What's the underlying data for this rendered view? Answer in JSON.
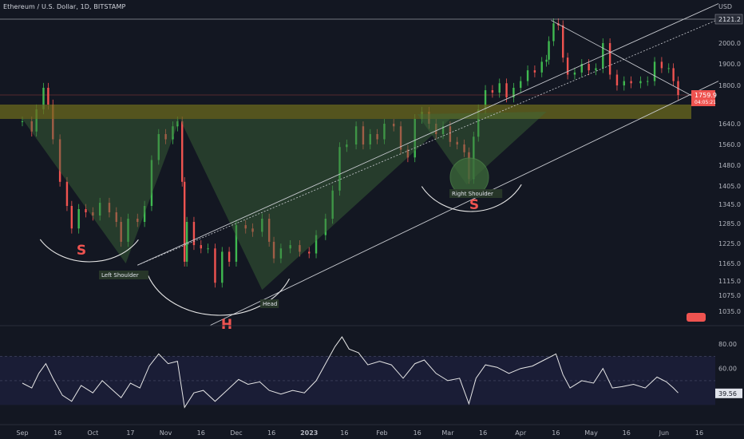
{
  "header": {
    "symbol_title": "Ethereum / U.S. Dollar, 1D, BITSTAMP",
    "currency": "USD"
  },
  "colors": {
    "background": "#131722",
    "up": "#26a69a",
    "up_candle": "#3fb950",
    "down": "#ef5350",
    "grid": "#1e222d",
    "axis_text": "#b2b5be",
    "resistance_zone": "#6b6a1e",
    "pattern_fill": "#3d6b3a",
    "channel_line": "#c9cbd1",
    "rsi_line": "#e6e6e6",
    "rsi_band": "#1c1f3a"
  },
  "chart_data": {
    "type": "candlestick",
    "title": "Ethereum / U.S. Dollar, 1D, BITSTAMP",
    "price_axis": {
      "ticks": [
        2121.2,
        2000.0,
        1900.0,
        1800.0,
        1640.0,
        1560.0,
        1480.0,
        1405.0,
        1345.0,
        1285.0,
        1225.0,
        1165.0,
        1115.0,
        1075.0,
        1035.0
      ],
      "tick_labels": [
        "2121.2",
        "2000.0",
        "1900.0",
        "1800.0",
        "1640.0",
        "1560.0",
        "1480.0",
        "1405.0",
        "1345.0",
        "1285.0",
        "1225.0",
        "1165.0",
        "1115.0",
        "1075.0",
        "1035.0"
      ],
      "last_price": "1759.9",
      "last_price_sub": "04:05:21",
      "scale": "log"
    },
    "time_axis": {
      "labels": [
        "Sep",
        "16",
        "Oct",
        "17",
        "Nov",
        "16",
        "Dec",
        "16",
        "2023",
        "16",
        "Feb",
        "16",
        "Mar",
        "16",
        "Apr",
        "16",
        "May",
        "16",
        "Jun",
        "16"
      ],
      "label_dates": [
        "2022-09-01",
        "2022-09-16",
        "2022-10-01",
        "2022-10-17",
        "2022-11-01",
        "2022-11-16",
        "2022-12-01",
        "2022-12-16",
        "2023-01-01",
        "2023-01-16",
        "2023-02-01",
        "2023-02-16",
        "2023-03-01",
        "2023-03-16",
        "2023-04-01",
        "2023-04-16",
        "2023-05-01",
        "2023-05-16",
        "2023-06-01",
        "2023-06-16"
      ]
    },
    "series": [
      {
        "name": "ETHUSD",
        "points": [
          [
            "2022-09-01",
            1650
          ],
          [
            "2022-09-05",
            1610
          ],
          [
            "2022-09-07",
            1700
          ],
          [
            "2022-09-10",
            1790
          ],
          [
            "2022-09-12",
            1720
          ],
          [
            "2022-09-14",
            1580
          ],
          [
            "2022-09-17",
            1420
          ],
          [
            "2022-09-20",
            1340
          ],
          [
            "2022-09-22",
            1270
          ],
          [
            "2022-09-25",
            1330
          ],
          [
            "2022-09-28",
            1320
          ],
          [
            "2022-10-01",
            1310
          ],
          [
            "2022-10-04",
            1350
          ],
          [
            "2022-10-08",
            1320
          ],
          [
            "2022-10-11",
            1290
          ],
          [
            "2022-10-13",
            1230
          ],
          [
            "2022-10-16",
            1300
          ],
          [
            "2022-10-20",
            1290
          ],
          [
            "2022-10-23",
            1340
          ],
          [
            "2022-10-26",
            1500
          ],
          [
            "2022-10-29",
            1600
          ],
          [
            "2022-11-01",
            1580
          ],
          [
            "2022-11-04",
            1630
          ],
          [
            "2022-11-06",
            1650
          ],
          [
            "2022-11-08",
            1420
          ],
          [
            "2022-11-09",
            1170
          ],
          [
            "2022-11-10",
            1290
          ],
          [
            "2022-11-13",
            1220
          ],
          [
            "2022-11-16",
            1210
          ],
          [
            "2022-11-19",
            1210
          ],
          [
            "2022-11-22",
            1110
          ],
          [
            "2022-11-25",
            1200
          ],
          [
            "2022-11-28",
            1170
          ],
          [
            "2022-12-01",
            1280
          ],
          [
            "2022-12-05",
            1270
          ],
          [
            "2022-12-08",
            1260
          ],
          [
            "2022-12-12",
            1300
          ],
          [
            "2022-12-15",
            1230
          ],
          [
            "2022-12-17",
            1180
          ],
          [
            "2022-12-20",
            1210
          ],
          [
            "2022-12-24",
            1220
          ],
          [
            "2022-12-28",
            1200
          ],
          [
            "2023-01-01",
            1195
          ],
          [
            "2023-01-04",
            1250
          ],
          [
            "2023-01-08",
            1300
          ],
          [
            "2023-01-11",
            1390
          ],
          [
            "2023-01-14",
            1550
          ],
          [
            "2023-01-17",
            1560
          ],
          [
            "2023-01-21",
            1630
          ],
          [
            "2023-01-24",
            1560
          ],
          [
            "2023-01-27",
            1600
          ],
          [
            "2023-01-30",
            1580
          ],
          [
            "2023-02-02",
            1640
          ],
          [
            "2023-02-06",
            1630
          ],
          [
            "2023-02-09",
            1540
          ],
          [
            "2023-02-12",
            1510
          ],
          [
            "2023-02-15",
            1660
          ],
          [
            "2023-02-18",
            1690
          ],
          [
            "2023-02-21",
            1640
          ],
          [
            "2023-02-24",
            1600
          ],
          [
            "2023-02-27",
            1630
          ],
          [
            "2023-03-02",
            1570
          ],
          [
            "2023-03-05",
            1560
          ],
          [
            "2023-03-08",
            1530
          ],
          [
            "2023-03-10",
            1430
          ],
          [
            "2023-03-12",
            1590
          ],
          [
            "2023-03-14",
            1700
          ],
          [
            "2023-03-17",
            1780
          ],
          [
            "2023-03-20",
            1770
          ],
          [
            "2023-03-23",
            1810
          ],
          [
            "2023-03-26",
            1750
          ],
          [
            "2023-03-29",
            1790
          ],
          [
            "2023-04-01",
            1820
          ],
          [
            "2023-04-04",
            1870
          ],
          [
            "2023-04-07",
            1860
          ],
          [
            "2023-04-10",
            1910
          ],
          [
            "2023-04-12",
            1920
          ],
          [
            "2023-04-13",
            2010
          ],
          [
            "2023-04-15",
            2100
          ],
          [
            "2023-04-17",
            2090
          ],
          [
            "2023-04-19",
            1930
          ],
          [
            "2023-04-21",
            1850
          ],
          [
            "2023-04-24",
            1860
          ],
          [
            "2023-04-27",
            1900
          ],
          [
            "2023-04-30",
            1870
          ],
          [
            "2023-05-03",
            1880
          ],
          [
            "2023-05-06",
            2000
          ],
          [
            "2023-05-09",
            1850
          ],
          [
            "2023-05-12",
            1800
          ],
          [
            "2023-05-15",
            1820
          ],
          [
            "2023-05-18",
            1810
          ],
          [
            "2023-05-22",
            1820
          ],
          [
            "2023-05-25",
            1820
          ],
          [
            "2023-05-28",
            1910
          ],
          [
            "2023-05-31",
            1880
          ],
          [
            "2023-06-03",
            1880
          ],
          [
            "2023-06-05",
            1820
          ],
          [
            "2023-06-07",
            1760
          ]
        ]
      },
      {
        "name": "RSI",
        "axis_ticks": [
          80.0,
          60.0
        ],
        "axis_tick_labels": [
          "80.00",
          "60.00"
        ],
        "last_value": "39.56",
        "band": [
          30,
          70
        ],
        "points": [
          [
            "2022-09-01",
            48
          ],
          [
            "2022-09-05",
            44
          ],
          [
            "2022-09-08",
            56
          ],
          [
            "2022-09-11",
            64
          ],
          [
            "2022-09-14",
            52
          ],
          [
            "2022-09-18",
            38
          ],
          [
            "2022-09-22",
            33
          ],
          [
            "2022-09-26",
            46
          ],
          [
            "2022-10-01",
            40
          ],
          [
            "2022-10-05",
            50
          ],
          [
            "2022-10-09",
            43
          ],
          [
            "2022-10-13",
            36
          ],
          [
            "2022-10-17",
            48
          ],
          [
            "2022-10-21",
            44
          ],
          [
            "2022-10-25",
            62
          ],
          [
            "2022-10-29",
            72
          ],
          [
            "2022-11-02",
            64
          ],
          [
            "2022-11-06",
            66
          ],
          [
            "2022-11-09",
            28
          ],
          [
            "2022-11-13",
            40
          ],
          [
            "2022-11-17",
            42
          ],
          [
            "2022-11-22",
            33
          ],
          [
            "2022-11-27",
            42
          ],
          [
            "2022-12-02",
            51
          ],
          [
            "2022-12-06",
            47
          ],
          [
            "2022-12-11",
            49
          ],
          [
            "2022-12-15",
            42
          ],
          [
            "2022-12-20",
            39
          ],
          [
            "2022-12-25",
            42
          ],
          [
            "2022-12-30",
            40
          ],
          [
            "2023-01-04",
            50
          ],
          [
            "2023-01-08",
            64
          ],
          [
            "2023-01-12",
            78
          ],
          [
            "2023-01-15",
            86
          ],
          [
            "2023-01-18",
            76
          ],
          [
            "2023-01-22",
            73
          ],
          [
            "2023-01-26",
            63
          ],
          [
            "2023-01-31",
            66
          ],
          [
            "2023-02-05",
            63
          ],
          [
            "2023-02-10",
            52
          ],
          [
            "2023-02-15",
            64
          ],
          [
            "2023-02-19",
            67
          ],
          [
            "2023-02-24",
            56
          ],
          [
            "2023-03-01",
            50
          ],
          [
            "2023-03-06",
            52
          ],
          [
            "2023-03-10",
            31
          ],
          [
            "2023-03-13",
            52
          ],
          [
            "2023-03-17",
            63
          ],
          [
            "2023-03-22",
            61
          ],
          [
            "2023-03-27",
            56
          ],
          [
            "2023-04-01",
            60
          ],
          [
            "2023-04-06",
            62
          ],
          [
            "2023-04-11",
            67
          ],
          [
            "2023-04-16",
            72
          ],
          [
            "2023-04-19",
            55
          ],
          [
            "2023-04-22",
            44
          ],
          [
            "2023-04-27",
            50
          ],
          [
            "2023-05-02",
            48
          ],
          [
            "2023-05-06",
            60
          ],
          [
            "2023-05-10",
            44
          ],
          [
            "2023-05-14",
            45
          ],
          [
            "2023-05-19",
            47
          ],
          [
            "2023-05-24",
            44
          ],
          [
            "2023-05-29",
            53
          ],
          [
            "2023-06-02",
            49
          ],
          [
            "2023-06-05",
            44
          ],
          [
            "2023-06-07",
            40
          ]
        ]
      }
    ],
    "annotations": {
      "left_shoulder": "Left Shoulder",
      "head": "Head",
      "right_shoulder": "Right Shoulder",
      "left_s": "S",
      "right_s": "S",
      "head_h": "H"
    },
    "resistance_zone": [
      1660,
      1720
    ],
    "grid": false,
    "legend": "none"
  }
}
